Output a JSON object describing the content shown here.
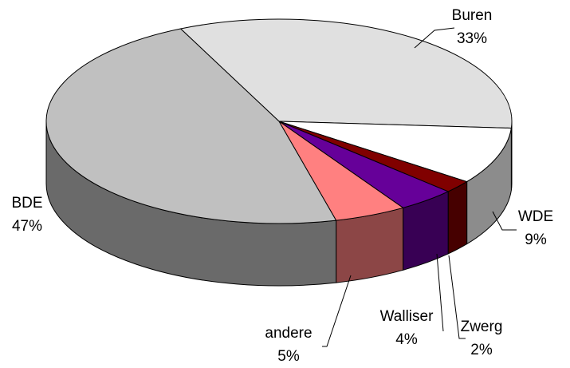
{
  "chart_data": {
    "type": "pie",
    "categories": [
      "Buren",
      "WDE",
      "Zwerg",
      "Walliser",
      "andere",
      "BDE"
    ],
    "values": [
      33,
      9,
      2,
      4,
      5,
      47
    ],
    "value_labels": [
      "33%",
      "9%",
      "2%",
      "4%",
      "5%",
      "47%"
    ],
    "colors": [
      "#e0e0e0",
      "#ffffff",
      "#800000",
      "#660099",
      "#ff8080",
      "#c0c0c0"
    ]
  }
}
